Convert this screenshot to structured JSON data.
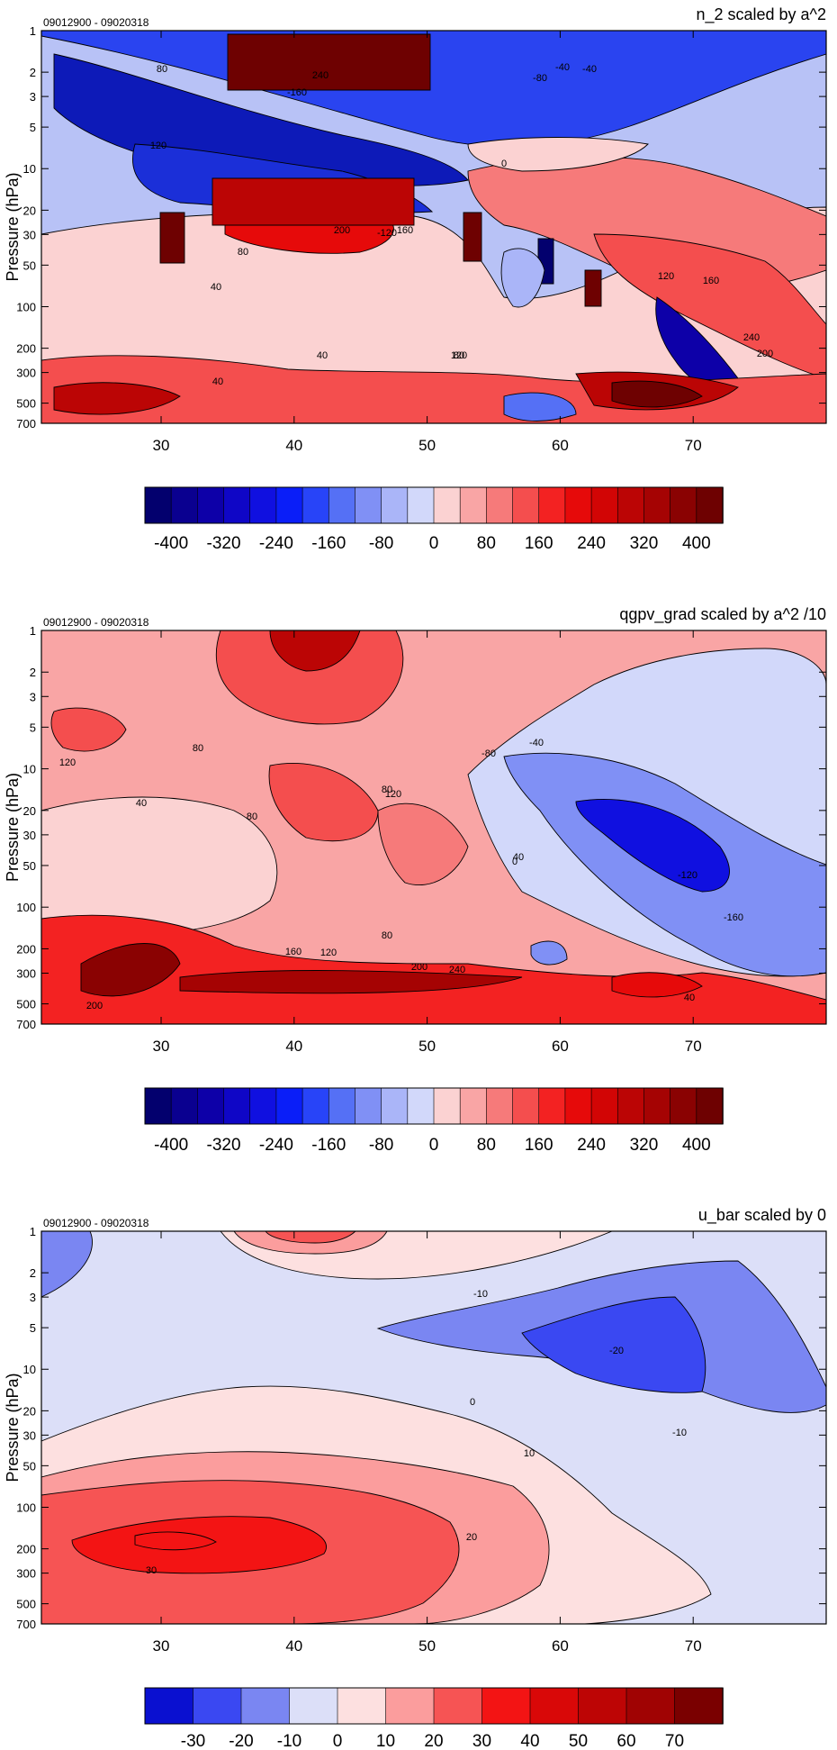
{
  "chart_data": [
    {
      "type": "heatmap",
      "title": "n_2 scaled by a^2",
      "time_range": "09012900 - 09020318",
      "ylabel": "Pressure (hPa)",
      "x_ticks": [
        30,
        40,
        50,
        60,
        70
      ],
      "y_ticks": [
        "1",
        "2",
        "3",
        "5",
        "10",
        "20",
        "30",
        "50",
        "100",
        "200",
        "300",
        "500",
        "700"
      ],
      "y_tick_values": [
        1,
        2,
        3,
        5,
        10,
        20,
        30,
        50,
        100,
        200,
        300,
        500,
        700
      ],
      "xlim": [
        21,
        80
      ],
      "y_scale": "log",
      "colorbar": {
        "labels": [
          "-400",
          "-320",
          "-240",
          "-160",
          "-80",
          "0",
          "80",
          "160",
          "240",
          "320",
          "400"
        ],
        "colors": [
          "#03006e",
          "#0a0090",
          "#0d00a8",
          "#0f06c6",
          "#1010e0",
          "#0a1ef8",
          "#2844f8",
          "#5570f5",
          "#8090f5",
          "#aab5f8",
          "#d2d8fa",
          "#fbd2d2",
          "#f9a5a5",
          "#f67a7a",
          "#f44e4e",
          "#f32222",
          "#e60a0a",
          "#d20505",
          "#bb0505",
          "#a50303",
          "#8a0202",
          "#6e0101"
        ]
      },
      "contour_labels": [
        "80",
        "240",
        "-160",
        "-40",
        "-80",
        "120",
        "0",
        "40",
        "80",
        "200",
        "160",
        "-120",
        "120",
        "160",
        "40",
        "120",
        "-40",
        "200",
        "240",
        "40",
        "80"
      ]
    },
    {
      "type": "heatmap",
      "title": "qgpv_grad scaled by a^2 /10",
      "time_range": "09012900 - 09020318",
      "ylabel": "Pressure (hPa)",
      "x_ticks": [
        30,
        40,
        50,
        60,
        70
      ],
      "y_ticks": [
        "1",
        "2",
        "3",
        "5",
        "10",
        "20",
        "30",
        "50",
        "100",
        "200",
        "300",
        "500",
        "700"
      ],
      "y_tick_values": [
        1,
        2,
        3,
        5,
        10,
        20,
        30,
        50,
        100,
        200,
        300,
        500,
        700
      ],
      "xlim": [
        21,
        80
      ],
      "y_scale": "log",
      "colorbar": {
        "labels": [
          "-400",
          "-320",
          "-240",
          "-160",
          "-80",
          "0",
          "80",
          "160",
          "240",
          "320",
          "400"
        ],
        "colors": [
          "#03006e",
          "#0a0090",
          "#0d00a8",
          "#0f06c6",
          "#1010e0",
          "#0a1ef8",
          "#2844f8",
          "#5570f5",
          "#8090f5",
          "#aab5f8",
          "#d2d8fa",
          "#fbd2d2",
          "#f9a5a5",
          "#f67a7a",
          "#f44e4e",
          "#f32222",
          "#e60a0a",
          "#d20505",
          "#bb0505",
          "#a50303",
          "#8a0202",
          "#6e0101"
        ]
      },
      "contour_labels": [
        "120",
        "80",
        "40",
        "80",
        "120",
        "80",
        "-40",
        "-80",
        "40",
        "-120",
        "-160",
        "0",
        "160",
        "120",
        "200",
        "200",
        "240",
        "40",
        "80"
      ]
    },
    {
      "type": "heatmap",
      "title": "u_bar scaled by 0",
      "time_range": "09012900 - 09020318",
      "ylabel": "Pressure (hPa)",
      "x_ticks": [
        30,
        40,
        50,
        60,
        70
      ],
      "y_ticks": [
        "1",
        "2",
        "3",
        "5",
        "10",
        "20",
        "30",
        "50",
        "100",
        "200",
        "300",
        "500",
        "700"
      ],
      "y_tick_values": [
        1,
        2,
        3,
        5,
        10,
        20,
        30,
        50,
        100,
        200,
        300,
        500,
        700
      ],
      "xlim": [
        21,
        80
      ],
      "y_scale": "log",
      "colorbar": {
        "labels": [
          "-30",
          "-20",
          "-10",
          "0",
          "10",
          "20",
          "30",
          "40",
          "50",
          "60",
          "70"
        ],
        "colors": [
          "#0a10d0",
          "#3a48f2",
          "#7a86f2",
          "#dcdff8",
          "#fde0e0",
          "#fb9d9d",
          "#f65454",
          "#f31414",
          "#d90808",
          "#bd0505",
          "#a00303",
          "#7a0000"
        ]
      },
      "contour_labels": [
        "-10",
        "-20",
        "-10",
        "0",
        "10",
        "20",
        "30"
      ]
    }
  ]
}
